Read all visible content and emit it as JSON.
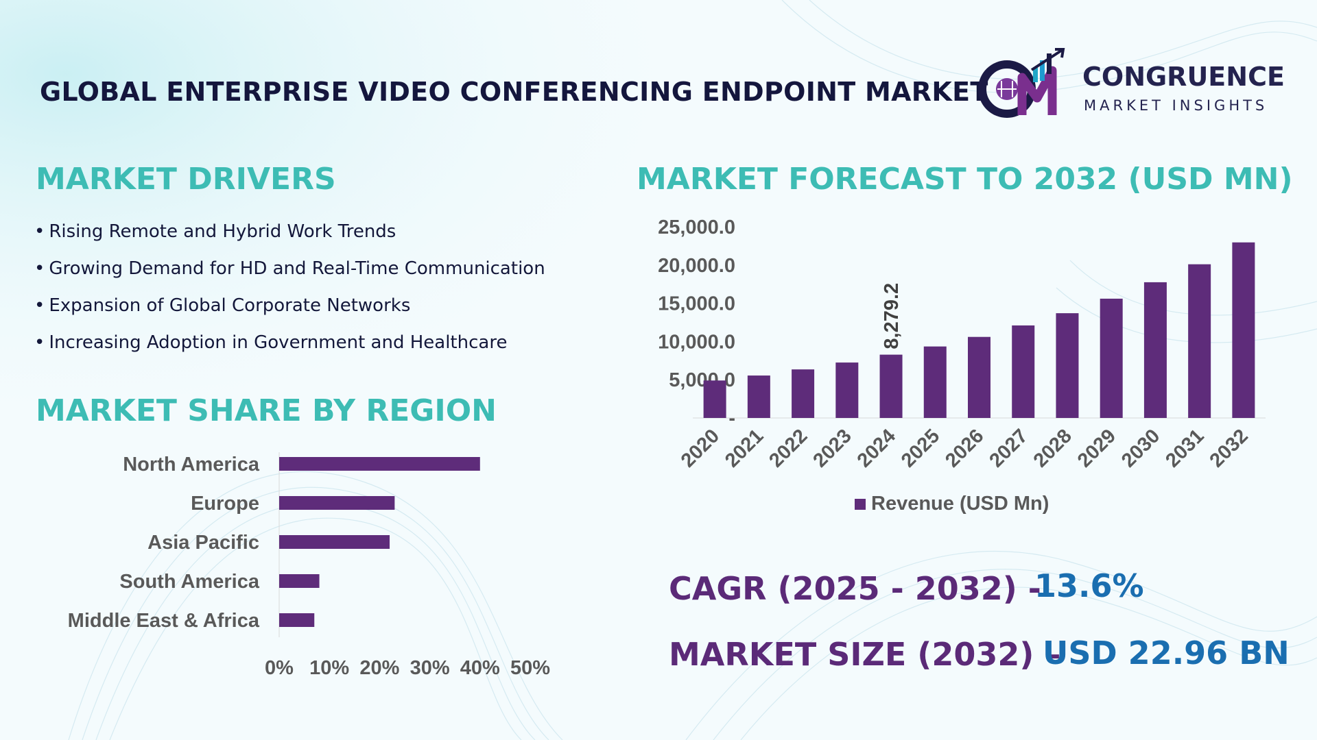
{
  "header": {
    "title": "GLOBAL ENTERPRISE VIDEO CONFERENCING ENDPOINT MARKET"
  },
  "logo": {
    "name": "CONGRUENCE",
    "tagline": "MARKET INSIGHTS"
  },
  "drivers": {
    "heading": "MARKET DRIVERS",
    "items": [
      "Rising Remote and Hybrid Work Trends",
      "Growing Demand for HD and Real-Time Communication",
      "Expansion of Global Corporate Networks",
      "Increasing Adoption in Government and Healthcare"
    ]
  },
  "region": {
    "heading": "MARKET SHARE BY REGION"
  },
  "forecast": {
    "heading": "MARKET FORECAST TO 2032 (USD MN)"
  },
  "stats": {
    "cagr_label": "CAGR (2025 - 2032) -",
    "cagr_value": "13.6%",
    "size_label": "MARKET SIZE (2032) –",
    "size_value": "USD 22.96 BN"
  },
  "colors": {
    "accent_teal": "#3dbcb4",
    "bar_purple": "#5e2c7a",
    "stat_purple": "#5b2a78",
    "stat_blue": "#1a6eb0"
  },
  "chart_data": [
    {
      "type": "bar",
      "orientation": "horizontal",
      "categories": [
        "North America",
        "Europe",
        "Asia Pacific",
        "South America",
        "Middle East & Africa"
      ],
      "values": [
        40,
        23,
        22,
        8,
        7
      ],
      "xlim": [
        0,
        50
      ],
      "tick_labels": [
        "0%",
        "10%",
        "20%",
        "30%",
        "40%",
        "50%"
      ],
      "grid": false
    },
    {
      "type": "bar",
      "categories": [
        "2020",
        "2021",
        "2022",
        "2023",
        "2024",
        "2025",
        "2026",
        "2027",
        "2028",
        "2029",
        "2030",
        "2031",
        "2032"
      ],
      "series": [
        {
          "name": "Revenue (USD Mn)",
          "values": [
            4900,
            5550,
            6350,
            7250,
            8279.2,
            9350,
            10600,
            12100,
            13700,
            15600,
            17750,
            20100,
            22960
          ]
        }
      ],
      "data_labels": [
        {
          "category": "2024",
          "text": "8,279.2"
        }
      ],
      "ylim": [
        0,
        25000
      ],
      "y_tick_labels": [
        "-",
        "5,000.0",
        "10,000.0",
        "15,000.0",
        "20,000.0",
        "25,000.0"
      ],
      "legend": "bottom",
      "grid": false
    }
  ]
}
